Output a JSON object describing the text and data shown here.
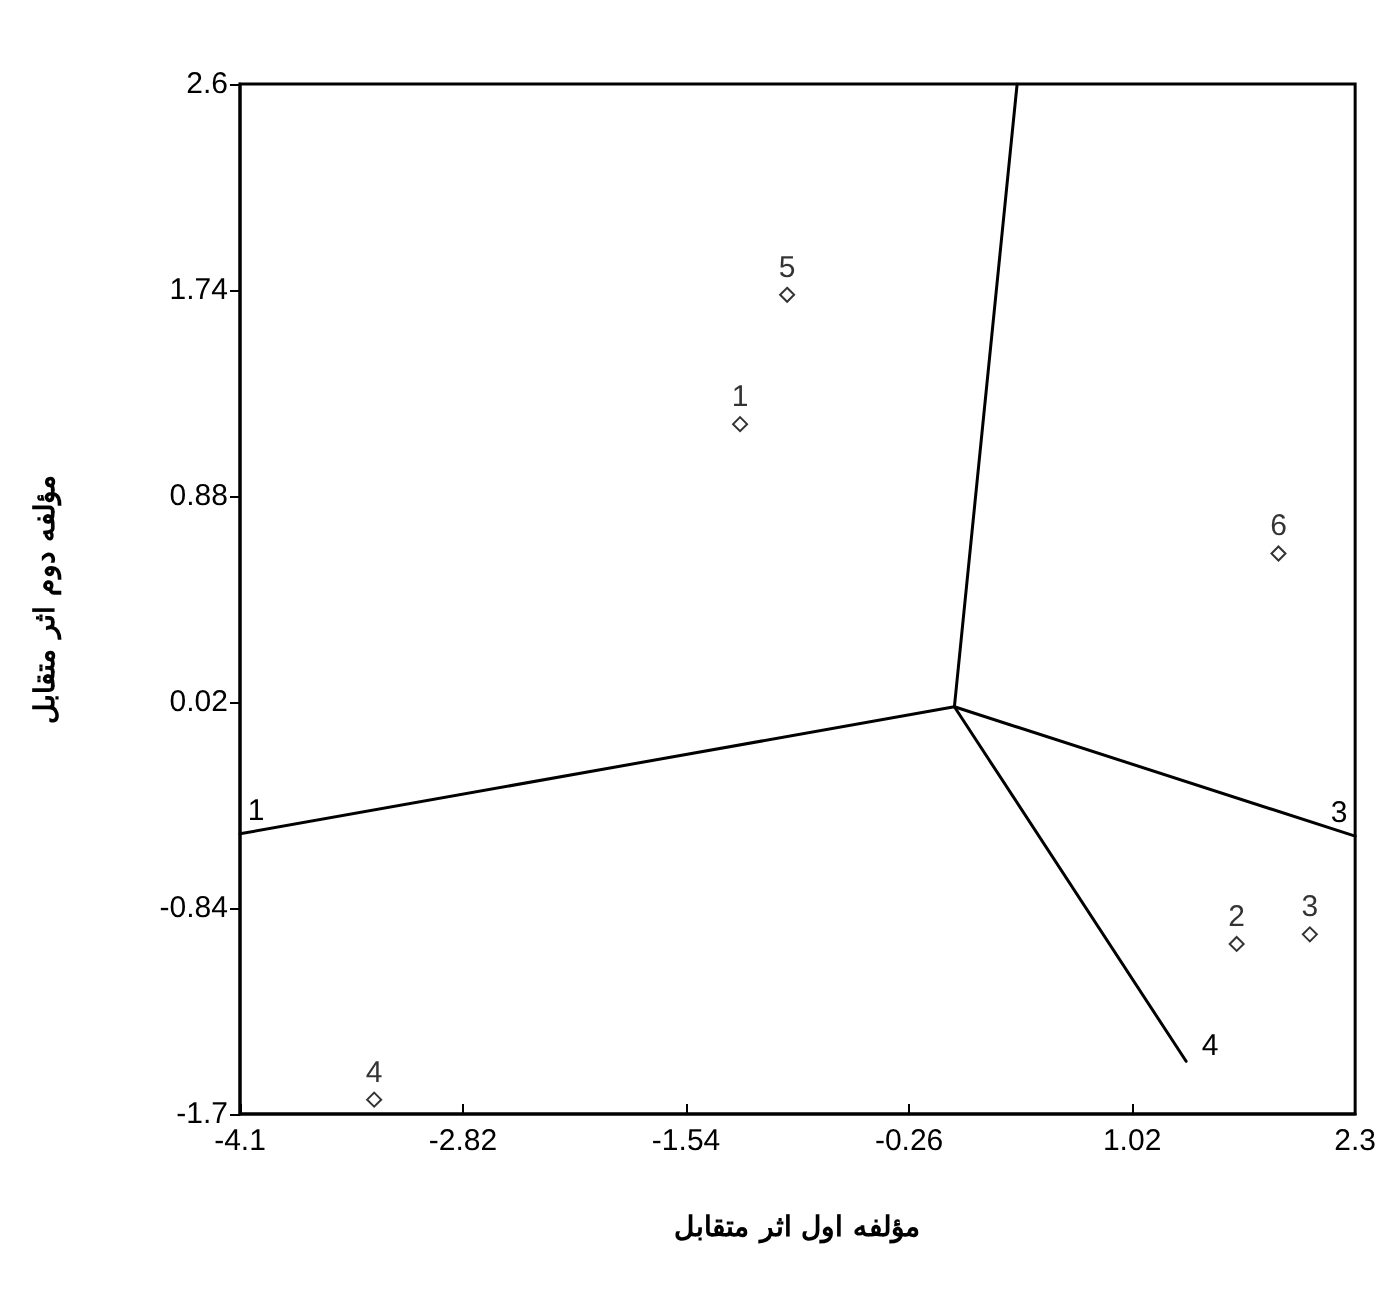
{
  "chart_data": {
    "type": "scatter",
    "xlabel": "مؤلفه اول اثر متقابل",
    "ylabel": "مؤلفه دوم اثر متقابل",
    "xlim": [
      -4.1,
      2.3
    ],
    "xticks": [
      -4.1,
      -2.82,
      -1.54,
      -0.26,
      1.02,
      2.3
    ],
    "ylim": [
      -1.7,
      2.6
    ],
    "yticks": [
      -1.7,
      -0.84,
      0.02,
      0.88,
      1.74,
      2.6
    ],
    "grid": false,
    "marker": "diamond",
    "series": [
      {
        "name": "1",
        "color": "#000000",
        "x": [
          -1.23
        ],
        "values": [
          1.18
        ]
      },
      {
        "name": "2",
        "color": "#000000",
        "x": [
          1.62
        ],
        "values": [
          -0.99
        ]
      },
      {
        "name": "3",
        "color": "#000000",
        "x": [
          2.04
        ],
        "values": [
          -0.95
        ]
      },
      {
        "name": "4",
        "color": "#000000",
        "x": [
          -3.33
        ],
        "values": [
          -1.64
        ]
      },
      {
        "name": "5",
        "color": "#000000",
        "x": [
          -0.96
        ],
        "values": [
          1.72
        ]
      },
      {
        "name": "6",
        "color": "#000000",
        "x": [
          1.86
        ],
        "values": [
          0.64
        ]
      },
      {
        "type": "line",
        "name": "1",
        "marker": "none",
        "color": "#000000",
        "x": [
          0,
          -4.1
        ],
        "values": [
          0,
          -0.53
        ]
      },
      {
        "type": "line",
        "name": "3",
        "marker": "none",
        "color": "#000000",
        "x": [
          0,
          2.3
        ],
        "values": [
          0,
          -0.54
        ]
      },
      {
        "type": "line",
        "name": "4",
        "marker": "none",
        "color": "#000000",
        "x": [
          0,
          1.33
        ],
        "values": [
          0,
          -1.48
        ]
      },
      {
        "type": "line",
        "marker": "none",
        "color": "#000000",
        "x": [
          0,
          0.36
        ],
        "values": [
          0,
          2.6
        ]
      }
    ]
  }
}
